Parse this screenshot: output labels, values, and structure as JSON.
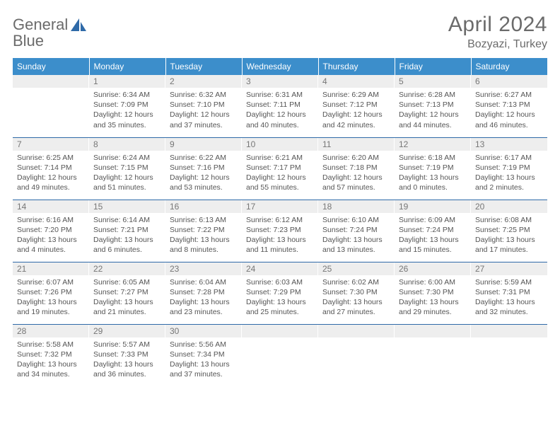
{
  "logo": {
    "word1": "General",
    "word2": "Blue"
  },
  "title": {
    "month": "April 2024",
    "location": "Bozyazi, Turkey"
  },
  "colors": {
    "header_bg": "#3c8ecb",
    "header_text": "#ffffff",
    "daynum_bg": "#eeeeee",
    "rule": "#2f6aa8",
    "body_text": "#555555",
    "logo_gray": "#6b6b6b",
    "logo_blue": "#2f6aa8"
  },
  "weekdays": [
    "Sunday",
    "Monday",
    "Tuesday",
    "Wednesday",
    "Thursday",
    "Friday",
    "Saturday"
  ],
  "weeks": [
    [
      null,
      {
        "n": "1",
        "sunrise": "6:34 AM",
        "sunset": "7:09 PM",
        "dl": "12 hours and 35 minutes."
      },
      {
        "n": "2",
        "sunrise": "6:32 AM",
        "sunset": "7:10 PM",
        "dl": "12 hours and 37 minutes."
      },
      {
        "n": "3",
        "sunrise": "6:31 AM",
        "sunset": "7:11 PM",
        "dl": "12 hours and 40 minutes."
      },
      {
        "n": "4",
        "sunrise": "6:29 AM",
        "sunset": "7:12 PM",
        "dl": "12 hours and 42 minutes."
      },
      {
        "n": "5",
        "sunrise": "6:28 AM",
        "sunset": "7:13 PM",
        "dl": "12 hours and 44 minutes."
      },
      {
        "n": "6",
        "sunrise": "6:27 AM",
        "sunset": "7:13 PM",
        "dl": "12 hours and 46 minutes."
      }
    ],
    [
      {
        "n": "7",
        "sunrise": "6:25 AM",
        "sunset": "7:14 PM",
        "dl": "12 hours and 49 minutes."
      },
      {
        "n": "8",
        "sunrise": "6:24 AM",
        "sunset": "7:15 PM",
        "dl": "12 hours and 51 minutes."
      },
      {
        "n": "9",
        "sunrise": "6:22 AM",
        "sunset": "7:16 PM",
        "dl": "12 hours and 53 minutes."
      },
      {
        "n": "10",
        "sunrise": "6:21 AM",
        "sunset": "7:17 PM",
        "dl": "12 hours and 55 minutes."
      },
      {
        "n": "11",
        "sunrise": "6:20 AM",
        "sunset": "7:18 PM",
        "dl": "12 hours and 57 minutes."
      },
      {
        "n": "12",
        "sunrise": "6:18 AM",
        "sunset": "7:19 PM",
        "dl": "13 hours and 0 minutes."
      },
      {
        "n": "13",
        "sunrise": "6:17 AM",
        "sunset": "7:19 PM",
        "dl": "13 hours and 2 minutes."
      }
    ],
    [
      {
        "n": "14",
        "sunrise": "6:16 AM",
        "sunset": "7:20 PM",
        "dl": "13 hours and 4 minutes."
      },
      {
        "n": "15",
        "sunrise": "6:14 AM",
        "sunset": "7:21 PM",
        "dl": "13 hours and 6 minutes."
      },
      {
        "n": "16",
        "sunrise": "6:13 AM",
        "sunset": "7:22 PM",
        "dl": "13 hours and 8 minutes."
      },
      {
        "n": "17",
        "sunrise": "6:12 AM",
        "sunset": "7:23 PM",
        "dl": "13 hours and 11 minutes."
      },
      {
        "n": "18",
        "sunrise": "6:10 AM",
        "sunset": "7:24 PM",
        "dl": "13 hours and 13 minutes."
      },
      {
        "n": "19",
        "sunrise": "6:09 AM",
        "sunset": "7:24 PM",
        "dl": "13 hours and 15 minutes."
      },
      {
        "n": "20",
        "sunrise": "6:08 AM",
        "sunset": "7:25 PM",
        "dl": "13 hours and 17 minutes."
      }
    ],
    [
      {
        "n": "21",
        "sunrise": "6:07 AM",
        "sunset": "7:26 PM",
        "dl": "13 hours and 19 minutes."
      },
      {
        "n": "22",
        "sunrise": "6:05 AM",
        "sunset": "7:27 PM",
        "dl": "13 hours and 21 minutes."
      },
      {
        "n": "23",
        "sunrise": "6:04 AM",
        "sunset": "7:28 PM",
        "dl": "13 hours and 23 minutes."
      },
      {
        "n": "24",
        "sunrise": "6:03 AM",
        "sunset": "7:29 PM",
        "dl": "13 hours and 25 minutes."
      },
      {
        "n": "25",
        "sunrise": "6:02 AM",
        "sunset": "7:30 PM",
        "dl": "13 hours and 27 minutes."
      },
      {
        "n": "26",
        "sunrise": "6:00 AM",
        "sunset": "7:30 PM",
        "dl": "13 hours and 29 minutes."
      },
      {
        "n": "27",
        "sunrise": "5:59 AM",
        "sunset": "7:31 PM",
        "dl": "13 hours and 32 minutes."
      }
    ],
    [
      {
        "n": "28",
        "sunrise": "5:58 AM",
        "sunset": "7:32 PM",
        "dl": "13 hours and 34 minutes."
      },
      {
        "n": "29",
        "sunrise": "5:57 AM",
        "sunset": "7:33 PM",
        "dl": "13 hours and 36 minutes."
      },
      {
        "n": "30",
        "sunrise": "5:56 AM",
        "sunset": "7:34 PM",
        "dl": "13 hours and 37 minutes."
      },
      null,
      null,
      null,
      null
    ]
  ],
  "labels": {
    "sunrise": "Sunrise:",
    "sunset": "Sunset:",
    "daylight": "Daylight:"
  }
}
